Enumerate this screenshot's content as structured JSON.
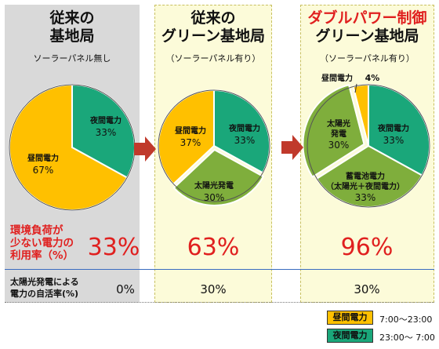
{
  "colors": {
    "daytime": "#ffc000",
    "night": "#1aa77a",
    "solar": "#7fae3c",
    "arrow": "#c0392b",
    "accent_red": "#e0201f"
  },
  "panels": [
    {
      "title_line1": "従来の",
      "title_line2": "基地局",
      "subtitle": "ソーラーパネル無し"
    },
    {
      "title_line1": "従来の",
      "title_line2": "グリーン基地局",
      "subtitle": "（ソーラーパネル有り）"
    },
    {
      "title_line1": "ダブルパワー制御",
      "title_line2": "グリーン基地局",
      "subtitle": "（ソーラーパネル有り）"
    }
  ],
  "chart_data": [
    {
      "type": "pie",
      "slices": [
        {
          "label": "夜間電力",
          "value": 33,
          "value_label": "33%"
        },
        {
          "label": "昼間電力",
          "value": 67,
          "value_label": "67%"
        }
      ]
    },
    {
      "type": "pie",
      "slices": [
        {
          "label": "夜間電力",
          "value": 33,
          "value_label": "33%"
        },
        {
          "label": "太陽光発電",
          "value": 30,
          "value_label": "30%"
        },
        {
          "label": "昼間電力",
          "value": 37,
          "value_label": "37%"
        }
      ]
    },
    {
      "type": "pie",
      "slices": [
        {
          "label": "夜間電力",
          "value": 33,
          "value_label": "33%"
        },
        {
          "label": "蓄電池電力",
          "label2": "（太陽光＋夜間電力）",
          "value": 33,
          "value_label": "33%"
        },
        {
          "label": "太陽光",
          "label2": "発電",
          "value": 30,
          "value_label": "30%"
        },
        {
          "label": "昼間電力",
          "value": 4,
          "value_label": "4%"
        }
      ]
    }
  ],
  "rows": {
    "low_env_label": [
      "環境負荷が",
      "少ない電力の",
      "利用率（%）"
    ],
    "low_env_values": [
      "33%",
      "63%",
      "96%"
    ],
    "solar_self_label": [
      "太陽光発電による",
      "電力の自活率(%)"
    ],
    "solar_self_values": [
      "0%",
      "30%",
      "30%"
    ]
  },
  "legend": [
    {
      "label": "昼間電力",
      "time": "7:00～23:00"
    },
    {
      "label": "夜間電力",
      "time": "23:00～ 7:00"
    }
  ]
}
